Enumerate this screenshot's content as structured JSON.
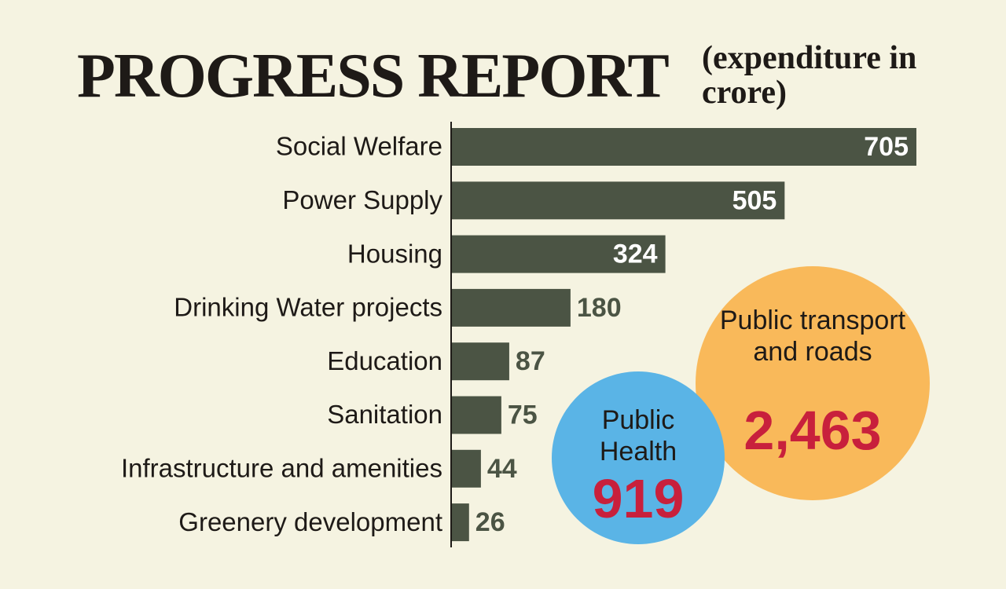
{
  "chart_data": {
    "type": "bar",
    "title": "PROGRESS REPORT",
    "subtitle": "(expenditure in crore)",
    "categories": [
      "Social Welfare",
      "Power Supply",
      "Housing",
      "Drinking Water projects",
      "Education",
      "Sanitation",
      "Infrastructure and amenities",
      "Greenery development"
    ],
    "values": [
      705,
      505,
      324,
      180,
      87,
      75,
      44,
      26
    ],
    "color": "#4b5444",
    "callouts": {
      "labels": [
        "Public Health",
        "Public transport and roads"
      ],
      "values": [
        919,
        2463
      ],
      "value_labels": [
        "919",
        "2,463"
      ],
      "colors": [
        "#5ab4e6",
        "#f9b95a"
      ]
    }
  }
}
